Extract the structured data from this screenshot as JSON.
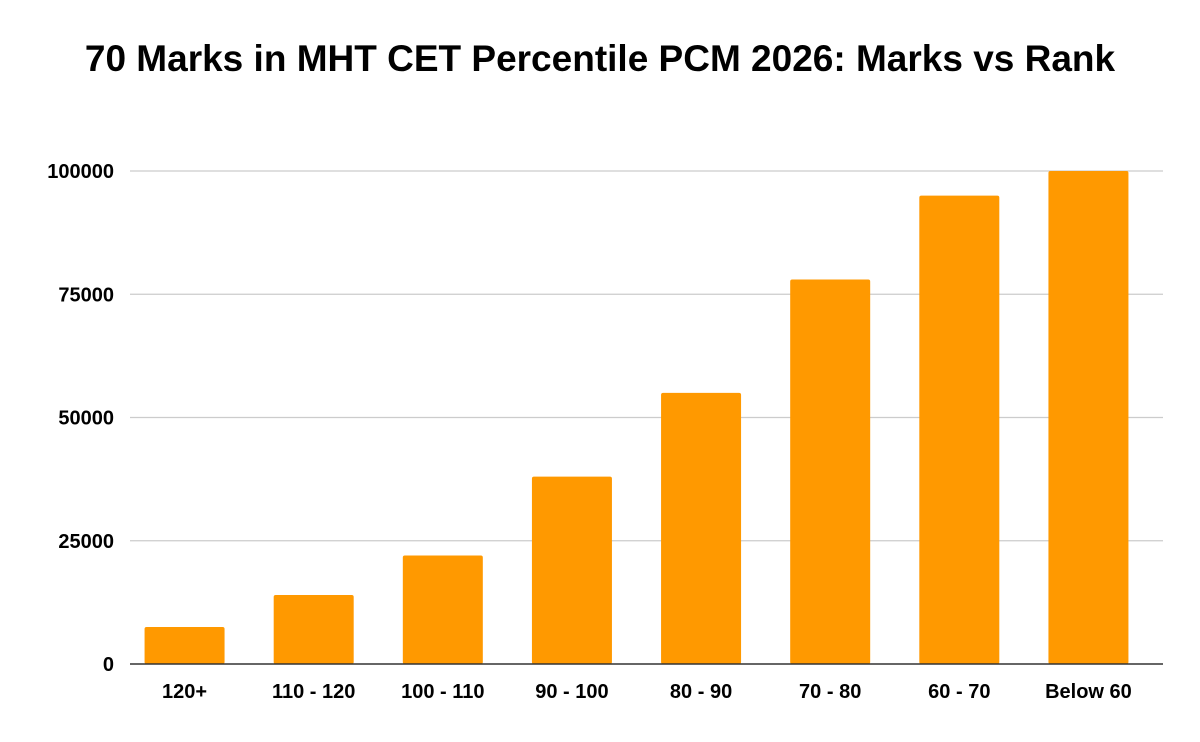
{
  "chart_data": {
    "type": "bar",
    "title": "70 Marks in MHT CET Percentile PCM 2026: Marks vs Rank",
    "xlabel": "",
    "ylabel": "",
    "categories": [
      "120+",
      "110 - 120",
      "100 - 110",
      "90 - 100",
      "80 - 90",
      "70 - 80",
      "60 - 70",
      "Below 60"
    ],
    "values": [
      7500,
      14000,
      22000,
      38000,
      55000,
      78000,
      95000,
      100000
    ],
    "ylim": [
      0,
      100000
    ],
    "yticks": [
      "0",
      "25000",
      "50000",
      "75000",
      "100000"
    ],
    "ytick_values": [
      0,
      25000,
      50000,
      75000,
      100000
    ],
    "grid": true,
    "legend": "none",
    "bar_color": "#FF9900",
    "grid_color": "#CCCCCC",
    "axis_color": "#333333"
  }
}
